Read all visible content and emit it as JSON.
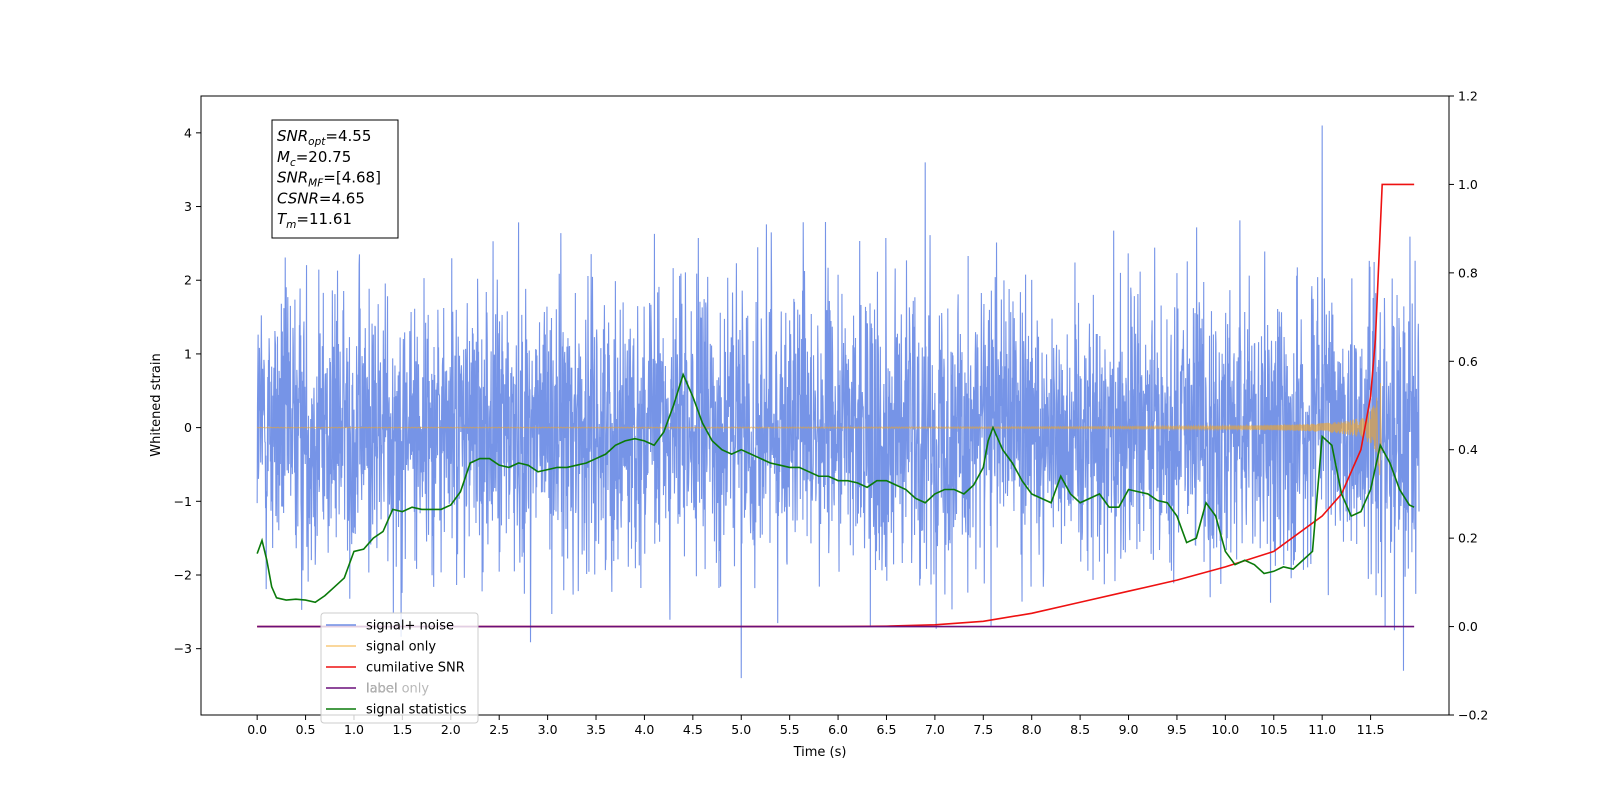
{
  "chart_data": {
    "type": "line",
    "xlabel": "Time (s)",
    "ylabel": "Whitened strain",
    "xlim": [
      -0.58,
      12.31
    ],
    "ylim": [
      -3.9,
      4.5
    ],
    "y2lim": [
      -0.2,
      1.2
    ],
    "x_ticks": [
      "0.0",
      "0.5",
      "1.0",
      "1.5",
      "2.0",
      "2.5",
      "3.0",
      "3.5",
      "4.0",
      "4.5",
      "5.0",
      "5.5",
      "6.0",
      "6.5",
      "7.0",
      "7.5",
      "8.0",
      "8.5",
      "9.0",
      "9.5",
      "10.0",
      "10.5",
      "11.0",
      "11.5"
    ],
    "y_ticks": [
      "−3",
      "−2",
      "−1",
      "0",
      "1",
      "2",
      "3",
      "4"
    ],
    "y2_ticks": [
      "−0.2",
      "0.0",
      "0.2",
      "0.4",
      "0.6",
      "0.8",
      "1.0",
      "1.2"
    ],
    "grid": false,
    "legend_position": "lower-left",
    "info_box": {
      "lines": [
        {
          "main": "SNR",
          "sub": "opt",
          "value": "=4.55"
        },
        {
          "main": "M",
          "sub": "c",
          "value": "=20.75"
        },
        {
          "main": "SNR",
          "sub": "MF",
          "value": "=[4.68]"
        },
        {
          "main": "CSNR",
          "sub": "",
          "value": "=4.65"
        },
        {
          "main": "T",
          "sub": "m",
          "value": "=11.61"
        }
      ]
    },
    "series": [
      {
        "name": "signal+ noise",
        "axis": "left",
        "color": "#6f8ee6",
        "style": "noise",
        "x_range": [
          0.0,
          12.0
        ],
        "amplitude_std": 0.95,
        "notable_peaks": [
          [
            11.0,
            4.1
          ],
          [
            6.9,
            3.6
          ],
          [
            5.0,
            -3.4
          ],
          [
            11.84,
            -3.3
          ]
        ]
      },
      {
        "name": "signal only",
        "axis": "left",
        "color": "#f5a623",
        "style": "chirp",
        "x_range": [
          0.0,
          11.61
        ],
        "peak_amplitude": 0.95,
        "merger_time": 11.61
      },
      {
        "name": "cumilative SNR",
        "axis": "right",
        "color": "#ee1111",
        "x": [
          0.0,
          6.0,
          6.5,
          7.0,
          7.5,
          8.0,
          8.5,
          9.0,
          9.5,
          10.0,
          10.5,
          11.0,
          11.2,
          11.4,
          11.5,
          11.55,
          11.6,
          11.62,
          11.95
        ],
        "y": [
          0.0,
          0.0,
          0.001,
          0.004,
          0.012,
          0.03,
          0.055,
          0.08,
          0.105,
          0.135,
          0.17,
          0.25,
          0.3,
          0.4,
          0.52,
          0.65,
          0.9,
          1.0,
          1.0
        ]
      },
      {
        "name": "label",
        "axis": "right",
        "color": "#6a0f7a",
        "x": [
          0.0,
          11.95
        ],
        "y": [
          0.0,
          0.0
        ]
      },
      {
        "name": "label only",
        "axis": "right",
        "color": "#b0b0b0",
        "legend_only": true
      },
      {
        "name": "signal statistics",
        "axis": "right",
        "color": "#0a7a0a",
        "x": [
          0.0,
          0.05,
          0.1,
          0.15,
          0.2,
          0.3,
          0.4,
          0.5,
          0.6,
          0.7,
          0.8,
          0.9,
          1.0,
          1.1,
          1.2,
          1.3,
          1.4,
          1.5,
          1.6,
          1.7,
          1.8,
          1.9,
          2.0,
          2.1,
          2.2,
          2.3,
          2.4,
          2.5,
          2.6,
          2.7,
          2.8,
          2.9,
          3.0,
          3.1,
          3.2,
          3.3,
          3.4,
          3.5,
          3.6,
          3.7,
          3.8,
          3.9,
          4.0,
          4.1,
          4.2,
          4.3,
          4.4,
          4.5,
          4.6,
          4.7,
          4.8,
          4.9,
          5.0,
          5.1,
          5.2,
          5.3,
          5.4,
          5.5,
          5.6,
          5.7,
          5.8,
          5.9,
          6.0,
          6.1,
          6.2,
          6.3,
          6.4,
          6.5,
          6.6,
          6.7,
          6.8,
          6.9,
          7.0,
          7.1,
          7.2,
          7.3,
          7.4,
          7.5,
          7.55,
          7.6,
          7.7,
          7.8,
          7.9,
          8.0,
          8.1,
          8.2,
          8.3,
          8.4,
          8.5,
          8.6,
          8.7,
          8.8,
          8.9,
          9.0,
          9.1,
          9.2,
          9.3,
          9.4,
          9.5,
          9.6,
          9.7,
          9.8,
          9.9,
          10.0,
          10.1,
          10.2,
          10.3,
          10.4,
          10.5,
          10.6,
          10.7,
          10.8,
          10.9,
          11.0,
          11.1,
          11.2,
          11.3,
          11.4,
          11.5,
          11.6,
          11.7,
          11.8,
          11.9,
          11.95
        ],
        "y": [
          0.165,
          0.195,
          0.15,
          0.09,
          0.065,
          0.06,
          0.062,
          0.06,
          0.055,
          0.07,
          0.09,
          0.11,
          0.17,
          0.175,
          0.2,
          0.215,
          0.265,
          0.26,
          0.27,
          0.265,
          0.265,
          0.265,
          0.275,
          0.305,
          0.37,
          0.38,
          0.38,
          0.365,
          0.36,
          0.37,
          0.365,
          0.35,
          0.355,
          0.36,
          0.36,
          0.365,
          0.37,
          0.38,
          0.39,
          0.41,
          0.42,
          0.425,
          0.42,
          0.41,
          0.44,
          0.5,
          0.57,
          0.52,
          0.46,
          0.42,
          0.4,
          0.39,
          0.4,
          0.39,
          0.38,
          0.37,
          0.365,
          0.36,
          0.36,
          0.35,
          0.34,
          0.34,
          0.33,
          0.33,
          0.325,
          0.315,
          0.33,
          0.33,
          0.32,
          0.31,
          0.29,
          0.28,
          0.3,
          0.31,
          0.31,
          0.3,
          0.32,
          0.36,
          0.42,
          0.45,
          0.4,
          0.37,
          0.33,
          0.3,
          0.29,
          0.28,
          0.34,
          0.3,
          0.28,
          0.29,
          0.3,
          0.27,
          0.27,
          0.31,
          0.305,
          0.3,
          0.285,
          0.28,
          0.25,
          0.19,
          0.2,
          0.28,
          0.25,
          0.17,
          0.14,
          0.15,
          0.14,
          0.12,
          0.125,
          0.135,
          0.13,
          0.15,
          0.17,
          0.43,
          0.41,
          0.3,
          0.25,
          0.26,
          0.31,
          0.41,
          0.37,
          0.31,
          0.275,
          0.27
        ]
      }
    ]
  }
}
